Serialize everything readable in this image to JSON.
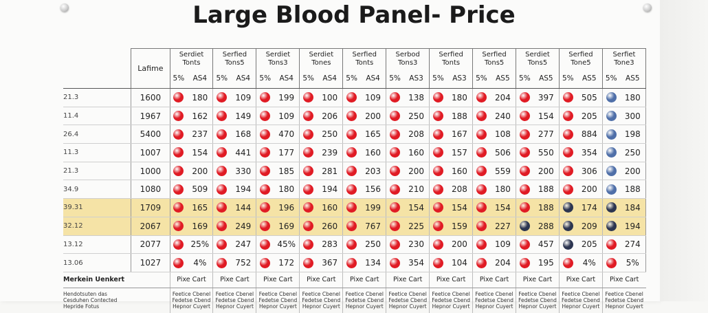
{
  "title": "Large Blood Panel- Price",
  "header": {
    "left_label": "Lafime",
    "groups": [
      {
        "line1": "Serdiet",
        "line2": "Tonts"
      },
      {
        "line1": "Serfied",
        "line2": "Tons5"
      },
      {
        "line1": "Serdiet",
        "line2": "Tons3"
      },
      {
        "line1": "Serdiet",
        "line2": "Tones"
      },
      {
        "line1": "Serfied",
        "line2": "Tonts"
      },
      {
        "line1": "Serbod",
        "line2": "Tons3"
      },
      {
        "line1": "Serfied",
        "line2": "Tonts"
      },
      {
        "line1": "Serfied",
        "line2": "Tons5"
      },
      {
        "line1": "Serdiet",
        "line2": "Tons5"
      },
      {
        "line1": "Serfied",
        "line2": "Tone5"
      },
      {
        "line1": "Serfiet",
        "line2": "Tone3"
      }
    ],
    "sub_a": [
      "5%",
      "5%",
      "5%",
      "5%",
      "5%",
      "5%",
      "5%",
      "5%",
      "5%",
      "5%",
      "5%"
    ],
    "sub_b": [
      "AS4",
      "AS4",
      "AS4",
      "AS4",
      "AS4",
      "AS3",
      "AS3",
      "AS5",
      "AS5",
      "AS5",
      "AS5"
    ]
  },
  "rows": [
    {
      "label": "21.3",
      "lv": "1600",
      "vals": [
        "180",
        "109",
        "199",
        "100",
        "109",
        "138",
        "180",
        "204",
        "397",
        "505",
        "180"
      ],
      "dots": [
        "red",
        "red",
        "red",
        "red",
        "red",
        "red",
        "red",
        "red",
        "red",
        "red",
        "blue"
      ],
      "highlight": false
    },
    {
      "label": "11.4",
      "lv": "1967",
      "vals": [
        "162",
        "149",
        "109",
        "206",
        "200",
        "250",
        "188",
        "240",
        "154",
        "205",
        "300"
      ],
      "dots": [
        "red",
        "red",
        "red",
        "red",
        "red",
        "red",
        "red",
        "red",
        "red",
        "red",
        "blue"
      ],
      "highlight": false
    },
    {
      "label": "26.4",
      "lv": "5400",
      "vals": [
        "237",
        "168",
        "470",
        "250",
        "165",
        "208",
        "167",
        "108",
        "277",
        "884",
        "198"
      ],
      "dots": [
        "red",
        "red",
        "red",
        "red",
        "red",
        "red",
        "red",
        "red",
        "red",
        "red",
        "blue"
      ],
      "highlight": false
    },
    {
      "label": "11.3",
      "lv": "1007",
      "vals": [
        "154",
        "441",
        "177",
        "239",
        "160",
        "160",
        "157",
        "506",
        "550",
        "354",
        "250"
      ],
      "dots": [
        "red",
        "red",
        "red",
        "red",
        "red",
        "red",
        "red",
        "red",
        "red",
        "red",
        "blue"
      ],
      "highlight": false
    },
    {
      "label": "21.3",
      "lv": "1000",
      "vals": [
        "200",
        "330",
        "185",
        "281",
        "203",
        "200",
        "160",
        "559",
        "200",
        "306",
        "200"
      ],
      "dots": [
        "red",
        "red",
        "red",
        "red",
        "red",
        "red",
        "red",
        "red",
        "red",
        "red",
        "blue"
      ],
      "highlight": false
    },
    {
      "label": "34.9",
      "lv": "1080",
      "vals": [
        "509",
        "194",
        "180",
        "194",
        "156",
        "210",
        "208",
        "180",
        "188",
        "200",
        "188"
      ],
      "dots": [
        "red",
        "red",
        "red",
        "red",
        "red",
        "red",
        "red",
        "red",
        "red",
        "red",
        "blue"
      ],
      "highlight": false
    },
    {
      "label": "39.31",
      "lv": "1709",
      "vals": [
        "165",
        "144",
        "196",
        "160",
        "199",
        "154",
        "154",
        "154",
        "188",
        "174",
        "184"
      ],
      "dots": [
        "red",
        "red",
        "red",
        "red",
        "red",
        "red",
        "red",
        "red",
        "red",
        "navy",
        "navy"
      ],
      "highlight": true
    },
    {
      "label": "32.12",
      "lv": "2067",
      "vals": [
        "169",
        "249",
        "169",
        "260",
        "767",
        "225",
        "159",
        "227",
        "288",
        "209",
        "194"
      ],
      "dots": [
        "red",
        "red",
        "red",
        "red",
        "red",
        "red",
        "red",
        "red",
        "navy",
        "navy",
        "navy"
      ],
      "highlight": true
    },
    {
      "label": "13.12",
      "lv": "2077",
      "vals": [
        "25%",
        "247",
        "45%",
        "283",
        "250",
        "230",
        "200",
        "109",
        "457",
        "205",
        "274"
      ],
      "dots": [
        "red",
        "red",
        "red",
        "red",
        "red",
        "red",
        "red",
        "red",
        "red",
        "navy",
        "red"
      ],
      "highlight": false
    },
    {
      "label": "13.06",
      "lv": "1027",
      "vals": [
        "4%",
        "752",
        "172",
        "367",
        "134",
        "354",
        "104",
        "204",
        "195",
        "4%",
        "5%"
      ],
      "dots": [
        "red",
        "red",
        "red",
        "red",
        "red",
        "red",
        "red",
        "red",
        "red",
        "red",
        "red"
      ],
      "highlight": false
    }
  ],
  "footer": {
    "row_label": "Merkein Uenkert",
    "cells": [
      "Pixe Cart",
      "Pixe Cart",
      "Pixe Cart",
      "Pixe Cart",
      "Pixe Cart",
      "Pixe Cart",
      "Pixe Cart",
      "Pixe Cart",
      "Pixe Cart",
      "Pixe Cart",
      "Pixe Cart"
    ],
    "note_label": [
      "Hendotsuten das",
      "Cesduhen Contected",
      "Hepride Fotus"
    ],
    "note_cell": [
      "Feetice Cbenel",
      "Fedetse Cbend",
      "Hepnor Cuyert"
    ]
  },
  "colors": {
    "red": "#e01b24",
    "blue": "#4f6fa8",
    "navy": "#2c3550",
    "highlight": "#f5e3a6"
  }
}
